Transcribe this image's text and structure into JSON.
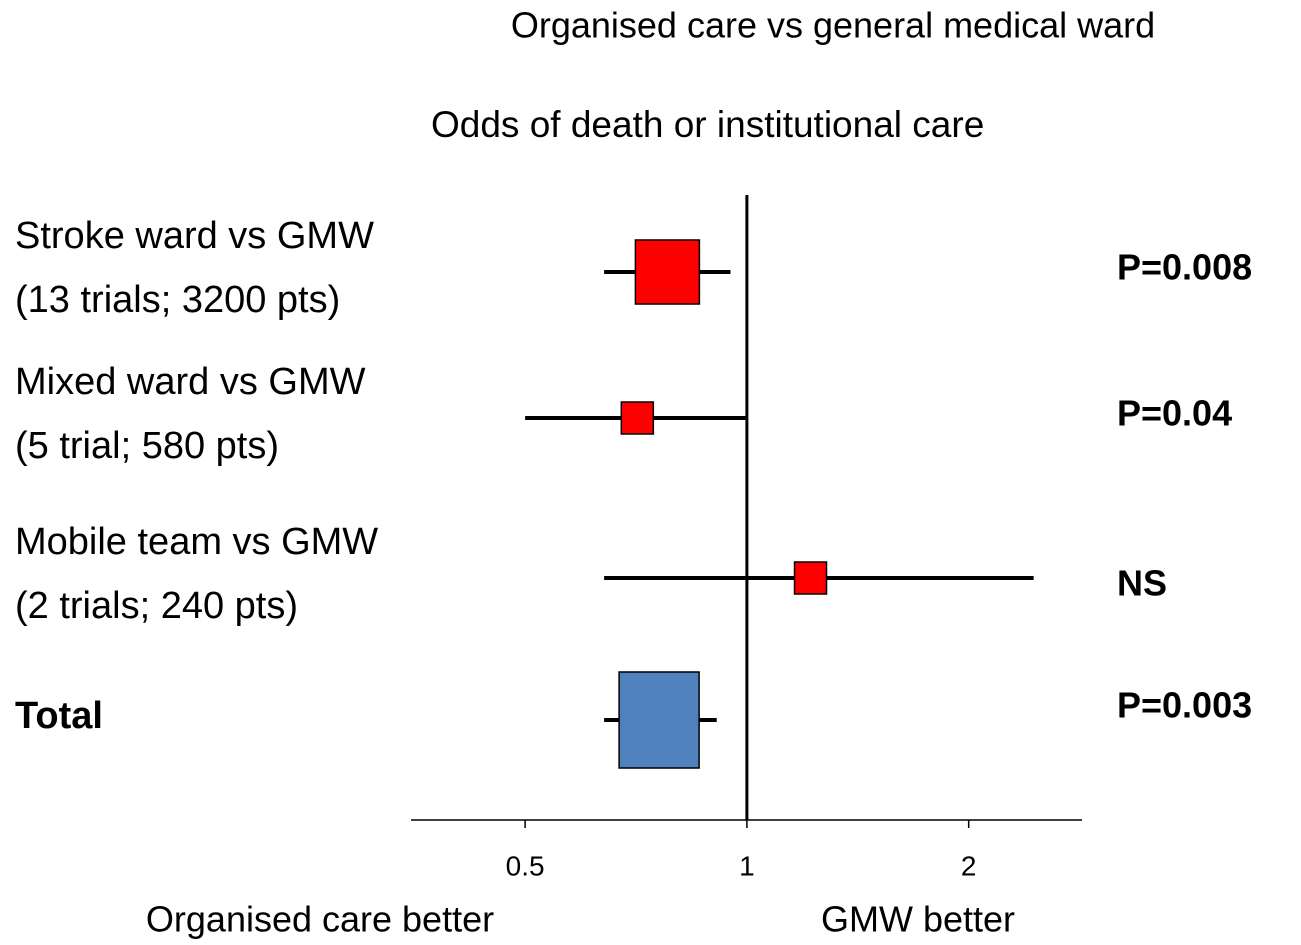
{
  "chart_data": {
    "type": "forest",
    "title": "Organised care  vs general medical ward",
    "subtitle": "Odds of death or institutional care",
    "categories": [
      "Stroke ward vs GMW",
      "Mixed ward vs GMW",
      "Mobile team vs GMW",
      "Total"
    ],
    "category_details": [
      "(13 trials; 3200 pts)",
      "(5 trial; 580 pts)",
      "(2 trials; 240 pts)",
      null
    ],
    "values": [
      0.78,
      0.71,
      1.22,
      0.76
    ],
    "ci_low": [
      0.64,
      0.5,
      0.64,
      0.64
    ],
    "ci_high": [
      0.95,
      1.0,
      2.45,
      0.91
    ],
    "colors": [
      "#ff0000",
      "#ff0000",
      "#ff0000",
      "#4f81bd"
    ],
    "annotations": [
      "P=0.008",
      "P=0.04",
      "NS",
      "P=0.003"
    ],
    "xlim": [
      0.35,
      2.85
    ],
    "xticks": [
      0.5,
      1,
      2
    ],
    "xscale": "log",
    "reference": 1,
    "xlabel_left": "Organised care better",
    "xlabel_right": "GMW better"
  }
}
